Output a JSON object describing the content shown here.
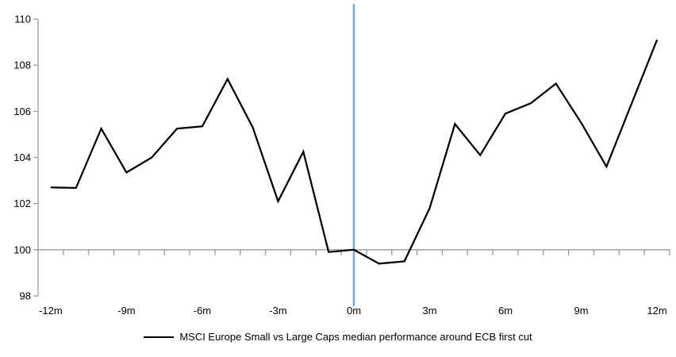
{
  "legend": {
    "marker": "black-line",
    "label": "MSCI Europe Small vs Large Caps median performance around ECB first cut"
  },
  "chart_data": {
    "type": "line",
    "title": "",
    "xlabel": "",
    "ylabel": "",
    "x": [
      -12,
      -11,
      -10,
      -9,
      -8,
      -7,
      -6,
      -5,
      -4,
      -3,
      -2,
      -1,
      0,
      1,
      2,
      3,
      4,
      5,
      6,
      7,
      8,
      9,
      10,
      11,
      12
    ],
    "x_tick_labels": [
      "-12m",
      "-9m",
      "-6m",
      "-3m",
      "0m",
      "3m",
      "6m",
      "9m",
      "12m"
    ],
    "x_tick_step": 3,
    "series": [
      {
        "name": "MSCI Europe Small vs Large Caps median performance around ECB first cut",
        "color": "#000000",
        "values": [
          102.7,
          102.68,
          105.25,
          103.35,
          104.0,
          105.25,
          105.35,
          107.4,
          105.3,
          102.1,
          104.25,
          99.9,
          100.0,
          99.4,
          99.5,
          101.8,
          105.45,
          104.1,
          105.9,
          106.35,
          107.2,
          105.5,
          103.6,
          106.35,
          109.1
        ]
      }
    ],
    "ylim": [
      98,
      110
    ],
    "y_ticks": [
      98,
      100,
      102,
      104,
      106,
      108,
      110
    ],
    "baseline_value": 100,
    "event_line": {
      "x": 0,
      "label": "ECB first cut",
      "color": "#7ba3cb"
    },
    "axis_color": "#9b9b9b",
    "grid": false,
    "legend_position": "bottom"
  }
}
